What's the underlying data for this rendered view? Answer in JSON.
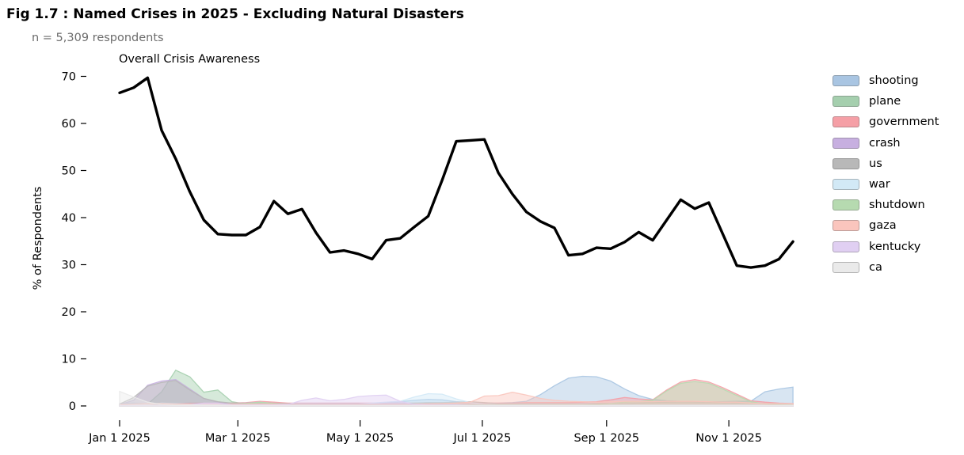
{
  "chart_data": {
    "type": "line+area",
    "title": "Fig 1.7 : Named Crises in 2025 - Excluding Natural Disasters",
    "subtitle": "n = 5,309 respondents",
    "line_annotation": "Overall Crisis Awareness",
    "ylabel": "% of Respondents",
    "ylim": [
      0,
      72
    ],
    "grid": false,
    "legend_position": "right",
    "sampling": "weekly starting Jan 1 2025",
    "sampling_interval_days": 7,
    "x_tick_labels": [
      "Jan 1 2025",
      "Mar 1 2025",
      "May 1 2025",
      "Jul 1 2025",
      "Sep 1 2025",
      "Nov 1 2025"
    ],
    "x_tick_day_offsets": [
      0,
      59,
      120,
      181,
      243,
      304
    ],
    "y_ticks": [
      0,
      10,
      20,
      30,
      40,
      50,
      60,
      70
    ],
    "line_series": {
      "name": "Overall Crisis Awareness",
      "color": "#000000",
      "values": [
        66.5,
        67.6,
        69.7,
        58.5,
        52.5,
        45.5,
        39.5,
        36.5,
        36.3,
        36.3,
        38.0,
        43.5,
        40.8,
        41.8,
        36.8,
        32.6,
        33.0,
        32.3,
        31.2,
        35.2,
        35.6,
        38.0,
        40.3,
        48.0,
        56.2,
        56.4,
        56.6,
        49.5,
        45.0,
        41.2,
        39.2,
        37.8,
        32.0,
        32.3,
        33.6,
        33.4,
        34.8,
        36.9,
        35.2,
        39.5,
        43.8,
        41.9,
        43.2,
        36.5,
        29.8,
        29.4,
        29.8,
        31.2,
        34.9
      ]
    },
    "area_series": [
      {
        "name": "shooting",
        "color": "#a9c5e2",
        "values": [
          0.5,
          0.6,
          0.5,
          0.5,
          0.4,
          0.4,
          0.4,
          0.4,
          0.4,
          0.4,
          0.4,
          0.4,
          0.4,
          0.5,
          0.5,
          0.5,
          0.5,
          0.5,
          0.5,
          0.7,
          0.9,
          1.2,
          1.4,
          1.3,
          0.9,
          0.7,
          0.6,
          0.6,
          0.7,
          1.0,
          2.4,
          4.3,
          5.9,
          6.3,
          6.2,
          5.3,
          3.6,
          2.2,
          1.4,
          1.1,
          1.0,
          0.9,
          0.9,
          0.9,
          1.0,
          1.0,
          3.0,
          3.6,
          4.0
        ]
      },
      {
        "name": "plane",
        "color": "#a5cfae",
        "values": [
          0.0,
          0.1,
          0.4,
          3.0,
          7.6,
          6.2,
          2.9,
          3.4,
          0.9,
          0.4,
          0.3,
          0.3,
          0.2,
          0.2,
          0.2,
          0.2,
          0.2,
          0.2,
          0.2,
          0.2,
          0.2,
          0.2,
          0.3,
          0.3,
          0.2,
          0.2,
          0.2,
          0.2,
          0.2,
          0.2,
          0.2,
          0.2,
          0.2,
          0.2,
          0.2,
          0.2,
          0.2,
          0.2,
          0.2,
          0.2,
          0.2,
          0.2,
          0.2,
          0.2,
          0.2,
          0.2,
          0.2,
          0.2,
          0.2
        ]
      },
      {
        "name": "government",
        "color": "#f59fa6",
        "values": [
          0.0,
          0.0,
          0.1,
          0.3,
          0.5,
          0.6,
          0.6,
          0.6,
          0.6,
          0.7,
          1.0,
          0.8,
          0.6,
          0.6,
          0.6,
          0.6,
          0.6,
          0.6,
          0.6,
          0.6,
          0.6,
          0.6,
          0.6,
          0.6,
          0.6,
          0.6,
          0.6,
          0.6,
          0.6,
          0.7,
          0.7,
          0.7,
          0.7,
          0.8,
          0.9,
          1.3,
          1.8,
          1.5,
          1.3,
          3.4,
          5.1,
          5.6,
          5.1,
          3.9,
          2.5,
          1.1,
          0.8,
          0.6,
          0.5
        ]
      },
      {
        "name": "crash",
        "color": "#c7afe0",
        "values": [
          0.3,
          1.2,
          4.4,
          5.3,
          5.6,
          3.6,
          1.6,
          0.8,
          0.5,
          0.6,
          0.8,
          0.5,
          0.4,
          0.4,
          0.5,
          0.4,
          0.4,
          0.4,
          0.4,
          0.4,
          0.4,
          0.3,
          0.3,
          0.3,
          0.3,
          0.3,
          0.3,
          0.3,
          0.3,
          0.3,
          0.3,
          0.3,
          0.3,
          0.3,
          0.3,
          0.3,
          0.3,
          0.3,
          0.3,
          0.3,
          0.3,
          0.3,
          0.3,
          0.3,
          0.3,
          0.3,
          0.3,
          0.3,
          0.3
        ]
      },
      {
        "name": "us",
        "color": "#b8b8b8",
        "values": [
          0.4,
          1.8,
          4.2,
          5.0,
          5.4,
          3.4,
          1.6,
          0.9,
          0.6,
          0.6,
          0.7,
          0.6,
          0.5,
          0.5,
          0.5,
          0.5,
          0.5,
          0.5,
          0.5,
          0.5,
          0.5,
          0.6,
          0.7,
          0.7,
          0.8,
          0.9,
          0.7,
          0.5,
          0.5,
          0.5,
          0.5,
          0.5,
          0.5,
          0.5,
          0.5,
          0.5,
          0.5,
          0.6,
          0.7,
          0.8,
          0.9,
          0.9,
          0.8,
          0.7,
          0.6,
          0.5,
          0.5,
          0.5,
          0.5
        ]
      },
      {
        "name": "war",
        "color": "#d2e9f6",
        "values": [
          0.2,
          0.2,
          0.3,
          0.6,
          0.5,
          0.4,
          0.3,
          0.3,
          0.3,
          0.3,
          0.3,
          0.3,
          0.3,
          0.3,
          0.3,
          0.3,
          0.3,
          0.4,
          0.6,
          0.8,
          1.0,
          1.9,
          2.6,
          2.5,
          1.5,
          0.7,
          0.4,
          0.3,
          0.3,
          0.3,
          0.3,
          0.3,
          0.3,
          0.3,
          0.3,
          0.3,
          0.3,
          0.3,
          0.3,
          0.3,
          0.3,
          0.3,
          0.3,
          0.3,
          0.3,
          0.3,
          0.3,
          0.3,
          0.3
        ]
      },
      {
        "name": "shutdown",
        "color": "#b6dab0",
        "values": [
          0.0,
          0.0,
          0.0,
          0.1,
          0.1,
          0.1,
          0.1,
          0.2,
          0.3,
          0.5,
          0.8,
          0.5,
          0.3,
          0.2,
          0.2,
          0.2,
          0.2,
          0.2,
          0.2,
          0.2,
          0.2,
          0.2,
          0.2,
          0.2,
          0.2,
          0.2,
          0.2,
          0.2,
          0.2,
          0.2,
          0.2,
          0.2,
          0.2,
          0.2,
          0.3,
          0.5,
          0.8,
          1.0,
          1.2,
          3.2,
          4.8,
          5.2,
          4.8,
          3.6,
          2.2,
          0.9,
          0.4,
          0.3,
          0.2
        ]
      },
      {
        "name": "gaza",
        "color": "#fac5bd",
        "values": [
          0.3,
          0.4,
          0.5,
          0.5,
          0.4,
          0.4,
          0.4,
          0.4,
          0.4,
          0.4,
          0.4,
          0.4,
          0.4,
          0.4,
          0.4,
          0.4,
          0.4,
          0.4,
          0.4,
          0.4,
          0.4,
          0.4,
          0.4,
          0.5,
          0.6,
          0.8,
          2.1,
          2.2,
          2.9,
          2.3,
          1.6,
          1.2,
          1.0,
          0.9,
          0.8,
          0.9,
          1.0,
          1.0,
          0.9,
          1.0,
          1.0,
          1.0,
          0.9,
          0.8,
          0.8,
          0.6,
          0.5,
          0.5,
          0.5
        ]
      },
      {
        "name": "kentucky",
        "color": "#e0cff2",
        "values": [
          0.1,
          0.1,
          0.1,
          0.1,
          0.1,
          0.2,
          0.6,
          0.6,
          0.2,
          0.2,
          0.2,
          0.2,
          0.3,
          1.2,
          1.7,
          1.1,
          1.4,
          2.0,
          2.2,
          2.3,
          1.0,
          0.3,
          0.2,
          0.2,
          0.2,
          0.1,
          0.1,
          0.1,
          0.1,
          0.1,
          0.1,
          0.1,
          0.1,
          0.1,
          0.1,
          0.1,
          0.1,
          0.1,
          0.1,
          0.1,
          0.1,
          0.1,
          0.1,
          0.1,
          0.1,
          0.1,
          0.1,
          0.1,
          0.1
        ]
      },
      {
        "name": "ca",
        "color": "#eaeaea",
        "values": [
          3.1,
          1.9,
          0.8,
          0.3,
          0.2,
          0.2,
          0.2,
          0.2,
          0.1,
          0.1,
          0.1,
          0.1,
          0.1,
          0.1,
          0.1,
          0.1,
          0.1,
          0.1,
          0.1,
          0.1,
          0.1,
          0.1,
          0.1,
          0.1,
          0.1,
          0.1,
          0.1,
          0.1,
          0.1,
          0.1,
          0.1,
          0.1,
          0.1,
          0.1,
          0.1,
          0.1,
          0.1,
          0.1,
          0.1,
          0.1,
          0.1,
          0.1,
          0.1,
          0.1,
          0.1,
          0.1,
          0.1,
          0.1,
          0.1
        ]
      }
    ]
  }
}
